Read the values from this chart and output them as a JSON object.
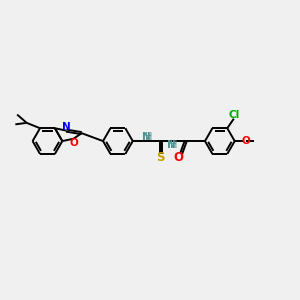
{
  "background_color": "#f0f0f0",
  "figsize": [
    3.0,
    3.0
  ],
  "dpi": 100,
  "line_color": "#000000",
  "line_width": 1.4,
  "font_size": 7.5,
  "N_color": "#0000ff",
  "O_color": "#ff0000",
  "S_color": "#c8a000",
  "Cl_color": "#00aa00",
  "NH_color": "#4a9090",
  "xlim": [
    0,
    10
  ],
  "ylim": [
    0,
    10
  ]
}
